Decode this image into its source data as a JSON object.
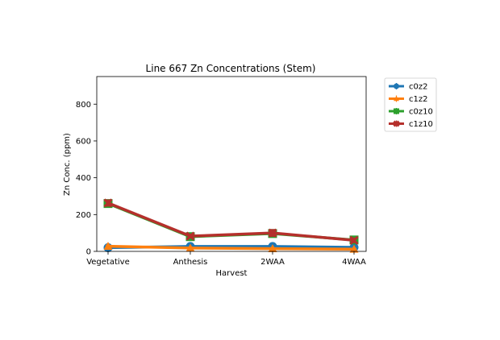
{
  "chart_data": {
    "type": "line",
    "title": "Line 667 Zn Concentrations (Stem)",
    "xlabel": "Harvest",
    "ylabel": "Zn Conc. (ppm)",
    "categories": [
      "Vegetative",
      "Anthesis",
      "2WAA",
      "4WAA"
    ],
    "ylim": [
      0,
      950
    ],
    "yticks": [
      0,
      200,
      400,
      600,
      800
    ],
    "grid": false,
    "legend_position": "outside-top-right",
    "series": [
      {
        "name": "c0z2",
        "color": "#1f77b4",
        "marker": "circle",
        "values": [
          20,
          27,
          27,
          22
        ],
        "errors": [
          6,
          5,
          5,
          4
        ]
      },
      {
        "name": "c1z2",
        "color": "#ff7f0e",
        "marker": "triangle",
        "values": [
          28,
          18,
          15,
          12
        ],
        "errors": [
          5,
          4,
          4,
          3
        ]
      },
      {
        "name": "c0z10",
        "color": "#2ca02c",
        "marker": "square",
        "values": [
          260,
          80,
          97,
          62
        ],
        "errors": [
          18,
          10,
          14,
          12
        ]
      },
      {
        "name": "c1z10",
        "color": "#b5302c",
        "marker": "x",
        "values": [
          263,
          83,
          100,
          60
        ],
        "errors": [
          16,
          10,
          18,
          12
        ]
      }
    ]
  }
}
